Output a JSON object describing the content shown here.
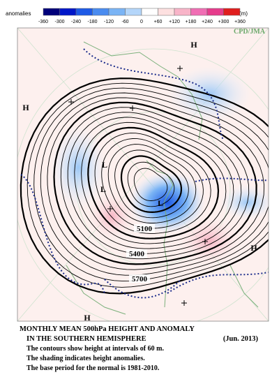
{
  "legend": {
    "label": "anomalies",
    "unit": "(m)",
    "ticks": [
      "-360",
      "-300",
      "-240",
      "-180",
      "-120",
      "-60",
      "0",
      "+60",
      "+120",
      "+180",
      "+240",
      "+300",
      "+360"
    ],
    "colors": [
      "#00007a",
      "#0016c8",
      "#1e5ae6",
      "#4a8cf0",
      "#7ab4f5",
      "#b4d6fa",
      "#ffffff",
      "#fde0e0",
      "#f8b4c8",
      "#f06eb4",
      "#e63c8c",
      "#e01e1e"
    ]
  },
  "credit": "CPD/JMA",
  "map_labels": [
    "H",
    "H",
    "L",
    "L",
    "L",
    "H",
    "H",
    "5100",
    "5400",
    "5700"
  ],
  "caption": {
    "title_line1": "MONTHLY MEAN 500hPa HEIGHT AND ANOMALY",
    "title_line2": "IN THE SOUTHERN HEMISPHERE",
    "date": "(Jun. 2013)",
    "notes": [
      "The contours show height at intervals of 60 m.",
      "The shading indicates height anomalies.",
      "The base period for the normal is 1981-2010."
    ]
  }
}
